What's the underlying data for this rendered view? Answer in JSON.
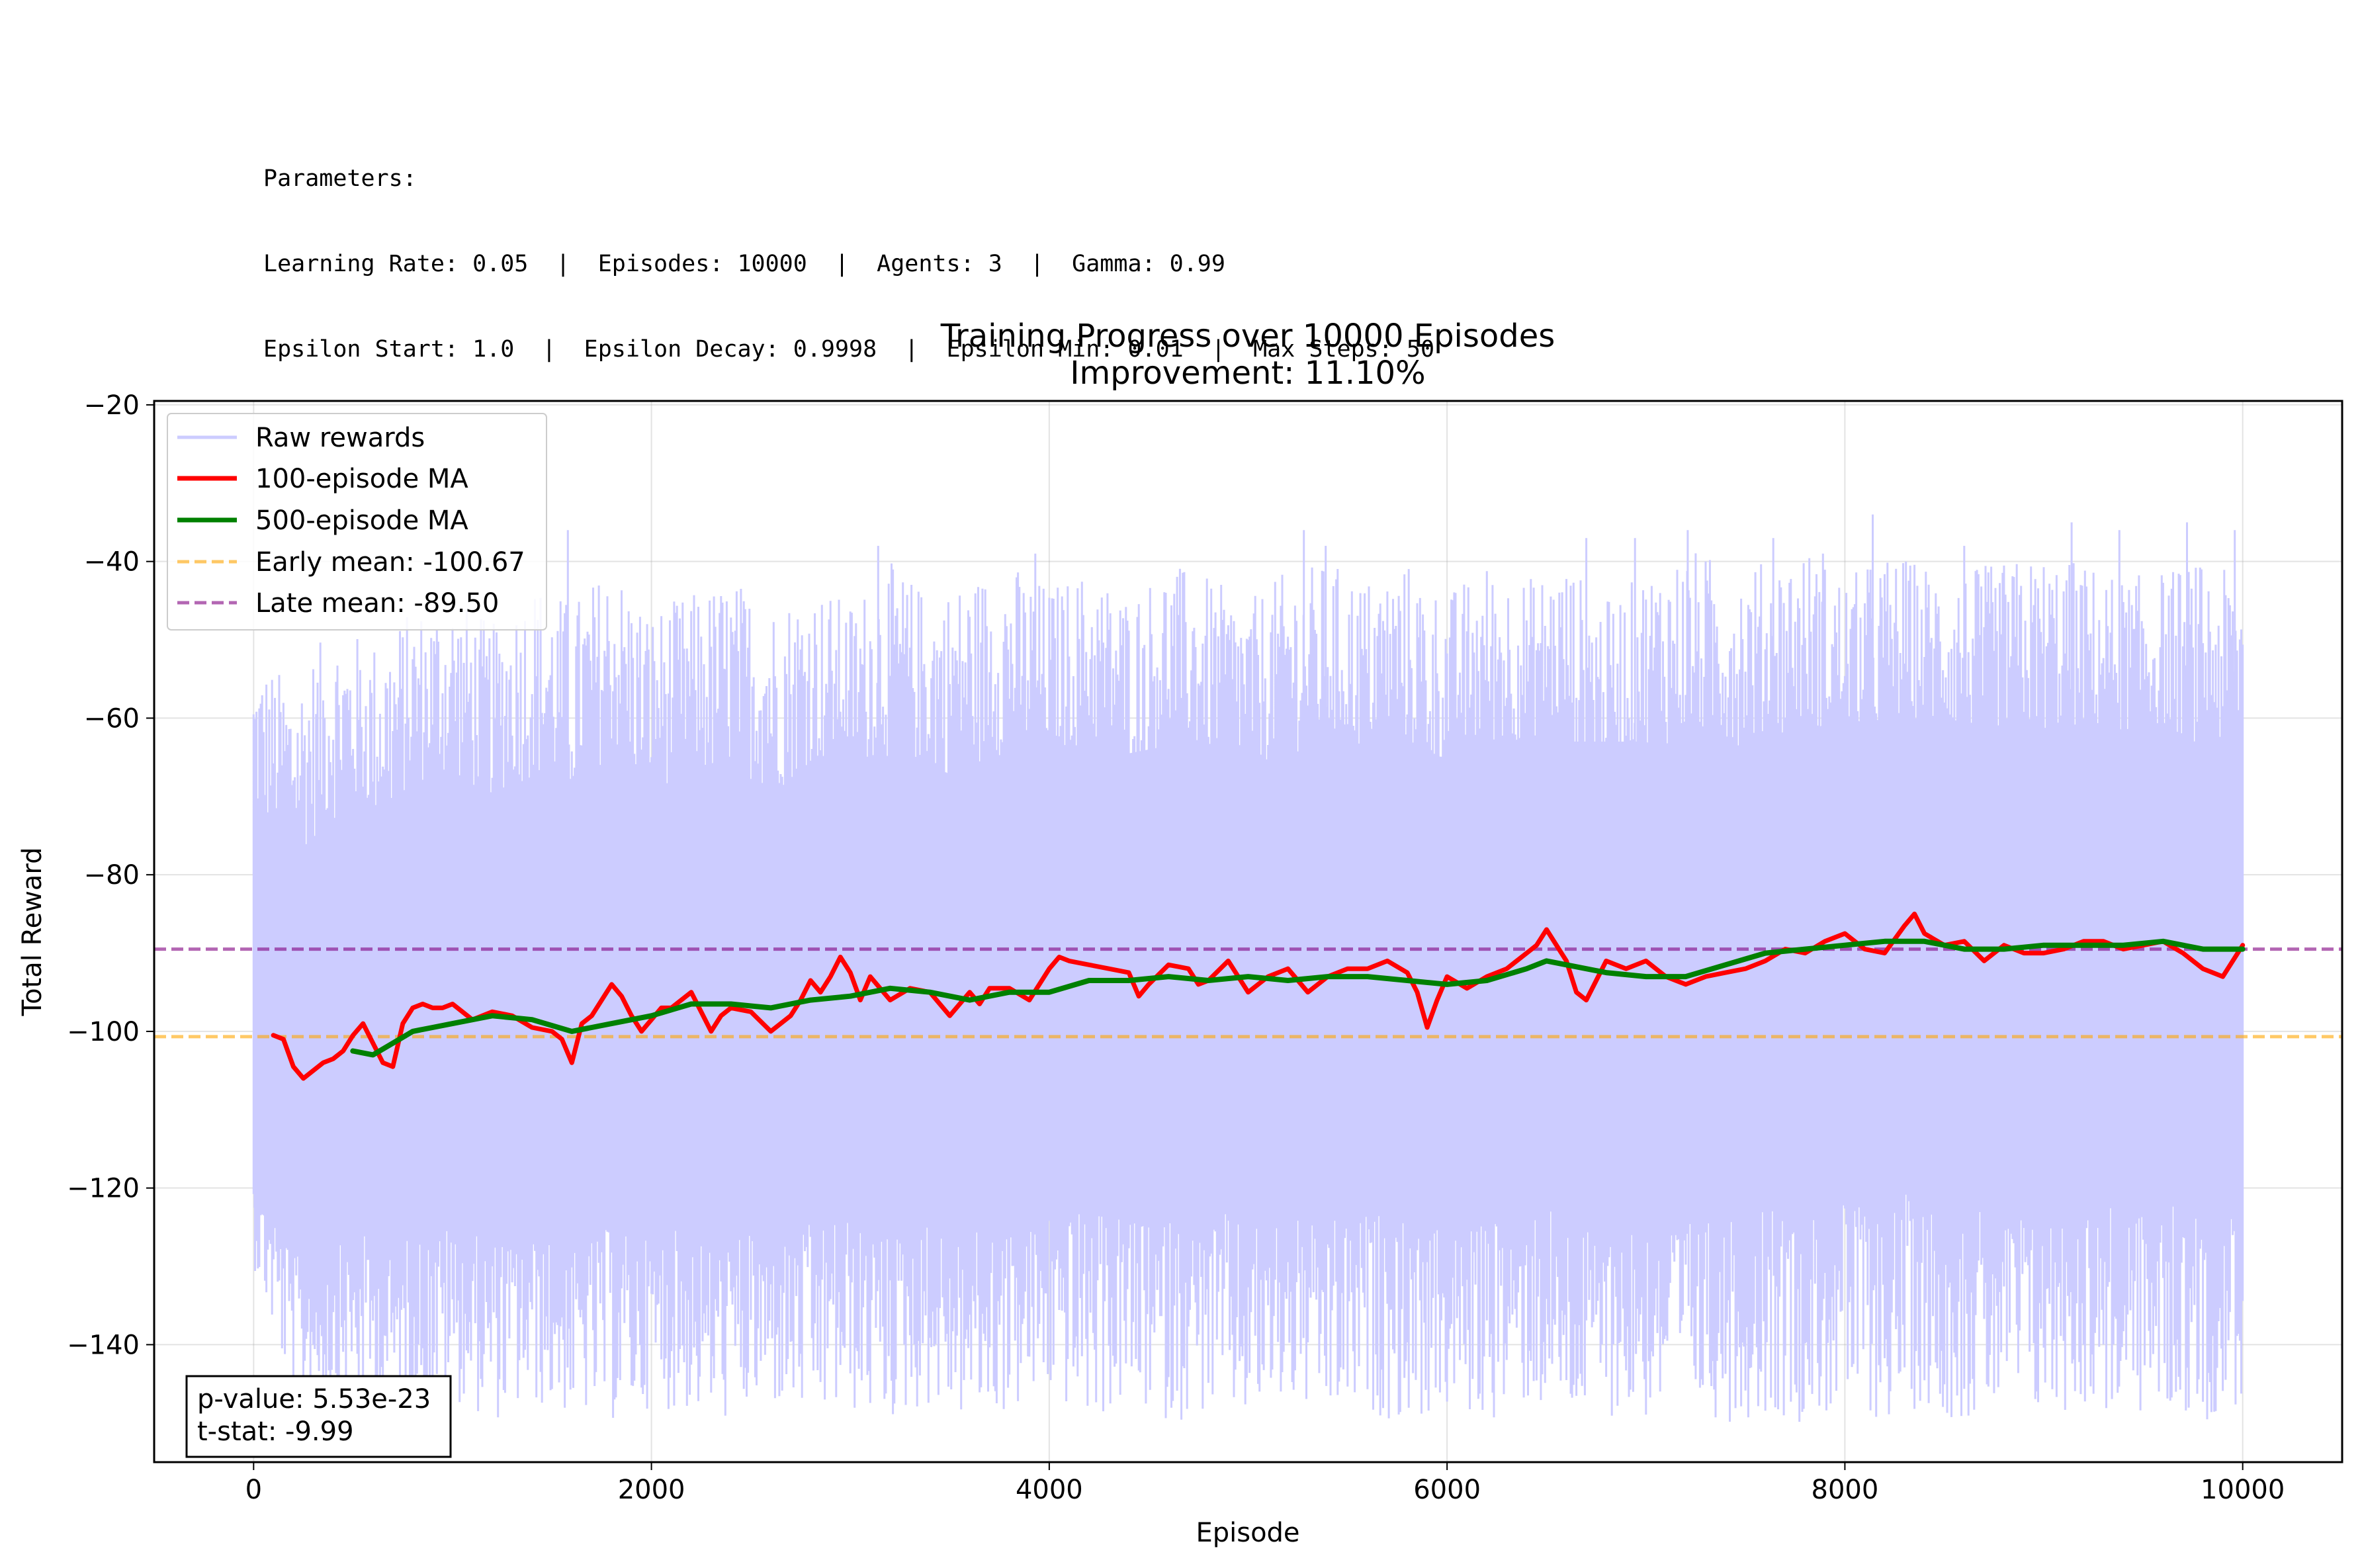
{
  "parameters": {
    "heading": "Parameters:",
    "line1": "Learning Rate: 0.05  |  Episodes: 10000  |  Agents: 3  |  Gamma: 0.99",
    "line2": "Epsilon Start: 1.0  |  Epsilon Decay: 0.9998  |  Epsilon Min: 0.01  |  Max Steps: 50"
  },
  "chart_data": {
    "type": "line",
    "title": "Training Progress over 10000 Episodes",
    "subtitle": "Improvement: 11.10%",
    "xlabel": "Episode",
    "ylabel": "Total Reward",
    "xlim": [
      -500,
      10500
    ],
    "ylim": [
      -155,
      -19.5
    ],
    "xticks": [
      0,
      2000,
      4000,
      6000,
      8000,
      10000
    ],
    "yticks": [
      -20,
      -40,
      -60,
      -80,
      -100,
      -120,
      -140
    ],
    "grid": true,
    "legend_position": "top-left",
    "raw_rewards": {
      "name": "Raw rewards",
      "color": "#ccccff",
      "episodes": 10000,
      "upper_envelope": [
        [
          0,
          -52
        ],
        [
          200,
          -55
        ],
        [
          400,
          -48
        ],
        [
          600,
          -50
        ],
        [
          800,
          -46
        ],
        [
          1000,
          -44
        ],
        [
          1200,
          -48
        ],
        [
          1400,
          -42
        ],
        [
          1600,
          -45
        ],
        [
          1800,
          -40
        ],
        [
          2000,
          -46
        ],
        [
          2200,
          -44
        ],
        [
          2400,
          -42
        ],
        [
          2600,
          -45
        ],
        [
          2800,
          -43
        ],
        [
          3000,
          -45
        ],
        [
          3200,
          -40
        ],
        [
          3400,
          -44
        ],
        [
          3600,
          -42
        ],
        [
          3800,
          -40
        ],
        [
          4000,
          -43
        ],
        [
          4200,
          -41
        ],
        [
          4400,
          -44
        ],
        [
          4600,
          -40
        ],
        [
          4800,
          -42
        ],
        [
          5000,
          -45
        ],
        [
          5200,
          -41
        ],
        [
          5400,
          -40
        ],
        [
          5600,
          -42
        ],
        [
          5800,
          -40
        ],
        [
          6000,
          -44
        ],
        [
          6200,
          -40
        ],
        [
          6400,
          -42
        ],
        [
          6600,
          -40
        ],
        [
          6800,
          -45
        ],
        [
          7000,
          -41
        ],
        [
          7200,
          -38
        ],
        [
          7400,
          -40
        ],
        [
          7600,
          -40
        ],
        [
          7800,
          -38
        ],
        [
          8000,
          -42
        ],
        [
          8200,
          -39
        ],
        [
          8400,
          -40
        ],
        [
          8600,
          -41
        ],
        [
          8800,
          -40
        ],
        [
          9000,
          -39
        ],
        [
          9200,
          -40
        ],
        [
          9400,
          -42
        ],
        [
          9600,
          -41
        ],
        [
          9800,
          -40
        ],
        [
          10000,
          -42
        ]
      ],
      "lower_envelope": [
        [
          0,
          -130
        ],
        [
          200,
          -148
        ],
        [
          400,
          -147
        ],
        [
          600,
          -148
        ],
        [
          800,
          -149
        ],
        [
          1000,
          -147
        ],
        [
          1200,
          -150
        ],
        [
          1400,
          -148
        ],
        [
          1600,
          -149
        ],
        [
          1800,
          -150
        ],
        [
          2000,
          -148
        ],
        [
          2200,
          -149
        ],
        [
          2400,
          -150
        ],
        [
          2600,
          -148
        ],
        [
          2800,
          -150
        ],
        [
          3000,
          -149
        ],
        [
          3200,
          -150
        ],
        [
          3400,
          -148
        ],
        [
          3600,
          -150
        ],
        [
          3800,
          -149
        ],
        [
          4000,
          -147
        ],
        [
          4200,
          -150
        ],
        [
          4400,
          -148
        ],
        [
          4600,
          -150
        ],
        [
          4800,
          -149
        ],
        [
          5000,
          -150
        ],
        [
          5200,
          -148
        ],
        [
          5400,
          -150
        ],
        [
          5600,
          -149
        ],
        [
          5800,
          -150
        ],
        [
          6000,
          -149
        ],
        [
          6200,
          -150
        ],
        [
          6400,
          -148
        ],
        [
          6600,
          -150
        ],
        [
          6800,
          -149
        ],
        [
          7000,
          -150
        ],
        [
          7200,
          -148
        ],
        [
          7400,
          -150
        ],
        [
          7600,
          -149
        ],
        [
          7800,
          -150
        ],
        [
          8000,
          -149
        ],
        [
          8200,
          -150
        ],
        [
          8400,
          -148
        ],
        [
          8600,
          -150
        ],
        [
          8800,
          -149
        ],
        [
          9000,
          -150
        ],
        [
          9200,
          -148
        ],
        [
          9400,
          -150
        ],
        [
          9600,
          -149
        ],
        [
          9800,
          -150
        ],
        [
          10000,
          -148
        ]
      ],
      "peaks": [
        [
          1580,
          -36
        ],
        [
          3140,
          -38
        ],
        [
          3930,
          -39
        ],
        [
          5280,
          -36
        ],
        [
          5390,
          -38
        ],
        [
          6700,
          -37
        ],
        [
          6945,
          -37
        ],
        [
          7210,
          -36
        ],
        [
          7640,
          -37
        ],
        [
          7890,
          -39
        ],
        [
          8140,
          -34
        ],
        [
          8600,
          -38
        ],
        [
          9140,
          -35
        ],
        [
          9380,
          -36
        ],
        [
          9720,
          -35
        ],
        [
          9960,
          -36
        ]
      ]
    },
    "series": [
      {
        "name": "100-episode MA",
        "color": "#ff0000",
        "x": [
          99,
          150,
          200,
          250,
          300,
          350,
          400,
          450,
          500,
          550,
          600,
          650,
          700,
          750,
          800,
          850,
          900,
          950,
          1000,
          1100,
          1200,
          1300,
          1400,
          1500,
          1550,
          1600,
          1650,
          1700,
          1750,
          1800,
          1850,
          1900,
          1950,
          2000,
          2050,
          2100,
          2200,
          2300,
          2350,
          2400,
          2500,
          2600,
          2700,
          2750,
          2800,
          2850,
          2900,
          2950,
          3000,
          3050,
          3100,
          3200,
          3300,
          3400,
          3500,
          3600,
          3650,
          3700,
          3800,
          3900,
          4000,
          4050,
          4100,
          4200,
          4300,
          4400,
          4450,
          4500,
          4600,
          4700,
          4750,
          4800,
          4900,
          5000,
          5100,
          5200,
          5300,
          5400,
          5500,
          5600,
          5700,
          5800,
          5850,
          5900,
          5950,
          6000,
          6100,
          6200,
          6300,
          6400,
          6450,
          6500,
          6550,
          6600,
          6650,
          6700,
          6800,
          6900,
          7000,
          7100,
          7200,
          7300,
          7400,
          7500,
          7600,
          7700,
          7800,
          7900,
          8000,
          8100,
          8200,
          8300,
          8350,
          8400,
          8500,
          8600,
          8700,
          8800,
          8900,
          9000,
          9100,
          9200,
          9300,
          9400,
          9500,
          9600,
          9700,
          9800,
          9900,
          10000
        ],
        "values": [
          -100.5,
          -101,
          -104.5,
          -106,
          -105,
          -104,
          -103.5,
          -102.5,
          -100.5,
          -99,
          -101.5,
          -104,
          -104.5,
          -99,
          -97,
          -96.5,
          -97,
          -97,
          -96.5,
          -98.5,
          -97.5,
          -98,
          -99.5,
          -100,
          -101,
          -104,
          -99,
          -98,
          -96,
          -94,
          -95.5,
          -98,
          -100,
          -98.5,
          -97,
          -97,
          -95,
          -100,
          -98,
          -97,
          -97.5,
          -100,
          -98,
          -96,
          -93.5,
          -95,
          -93,
          -90.5,
          -92.5,
          -96,
          -93,
          -96,
          -94.5,
          -95,
          -98,
          -95,
          -96.5,
          -94.5,
          -94.5,
          -96,
          -92,
          -90.5,
          -91,
          -91.5,
          -92,
          -92.5,
          -95.5,
          -94,
          -91.5,
          -92,
          -94,
          -93.5,
          -91,
          -95,
          -93,
          -92,
          -95,
          -93,
          -92,
          -92,
          -91,
          -92.5,
          -95,
          -99.5,
          -96,
          -93,
          -94.5,
          -93,
          -92,
          -90,
          -89,
          -87,
          -89,
          -91,
          -95,
          -96,
          -91,
          -92,
          -91,
          -93,
          -94,
          -93,
          -92.5,
          -92,
          -91,
          -89.5,
          -90,
          -88.5,
          -87.5,
          -89.5,
          -90,
          -86.5,
          -85,
          -87.5,
          -89,
          -88.5,
          -91,
          -89,
          -90,
          -90,
          -89.5,
          -88.5,
          -88.5,
          -89.5,
          -89,
          -88.5,
          -90,
          -92,
          -93,
          -89
        ]
      },
      {
        "name": "500-episode MA",
        "color": "#008000",
        "x": [
          499,
          600,
          700,
          800,
          900,
          1000,
          1200,
          1400,
          1600,
          1700,
          1800,
          2000,
          2200,
          2400,
          2600,
          2800,
          3000,
          3200,
          3400,
          3600,
          3800,
          4000,
          4200,
          4400,
          4600,
          4800,
          5000,
          5200,
          5400,
          5600,
          5800,
          6000,
          6200,
          6400,
          6500,
          6600,
          6800,
          7000,
          7200,
          7400,
          7600,
          7800,
          8000,
          8200,
          8400,
          8600,
          8800,
          9000,
          9200,
          9400,
          9600,
          9800,
          10000
        ],
        "values": [
          -102.5,
          -103,
          -101.5,
          -100,
          -99.5,
          -99,
          -98,
          -98.5,
          -100,
          -99.5,
          -99,
          -98,
          -96.5,
          -96.5,
          -97,
          -96,
          -95.5,
          -94.5,
          -95,
          -96,
          -95,
          -95,
          -93.5,
          -93.5,
          -93,
          -93.5,
          -93,
          -93.5,
          -93,
          -93,
          -93.5,
          -94,
          -93.5,
          -92,
          -91,
          -91.5,
          -92.5,
          -93,
          -93,
          -91.5,
          -90,
          -89.5,
          -89,
          -88.5,
          -88.5,
          -89.5,
          -89.5,
          -89,
          -89,
          -89,
          -88.5,
          -89.5,
          -89.5
        ]
      }
    ],
    "reference_lines": [
      {
        "name": "Early mean: -100.67",
        "value": -100.67,
        "color": "#ffa500",
        "style": "dashed"
      },
      {
        "name": "Late mean: -89.50",
        "value": -89.5,
        "color": "#800080",
        "style": "dashed"
      }
    ],
    "stats": {
      "p_value": "p-value: 5.53e-23",
      "t_stat": "t-stat: -9.99"
    }
  }
}
